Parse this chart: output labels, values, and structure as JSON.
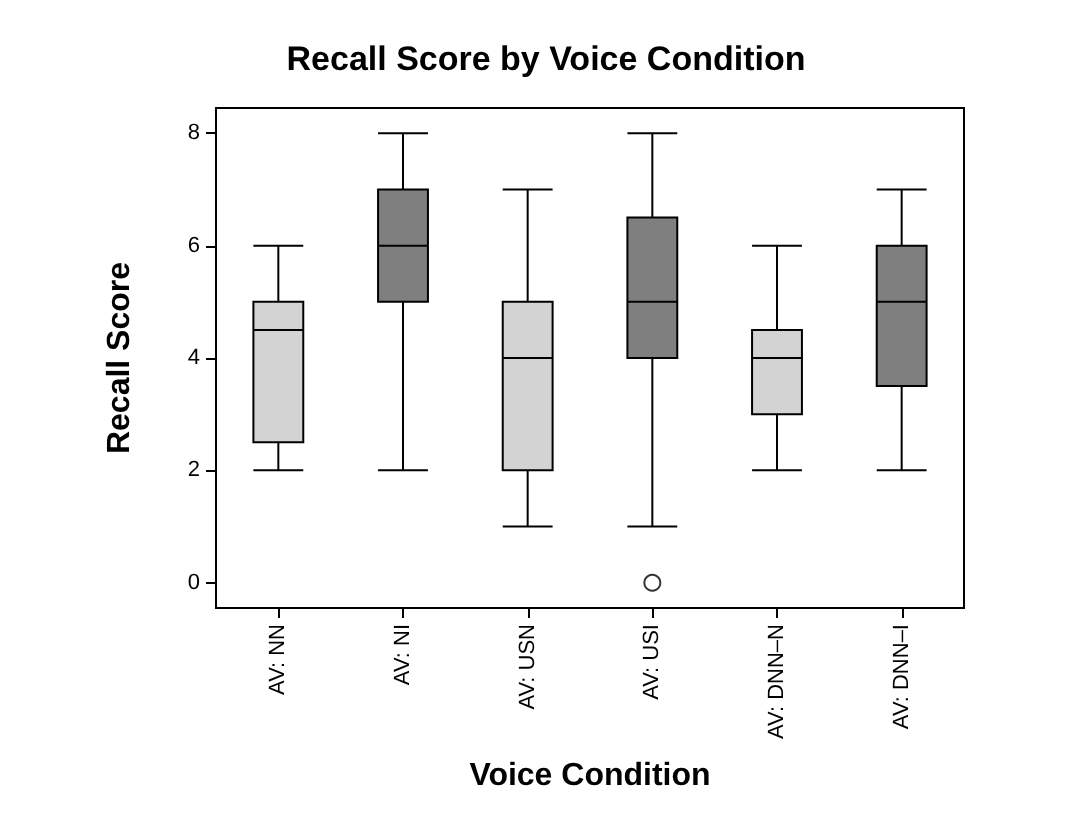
{
  "chart_data": {
    "type": "box",
    "title": "Recall Score by Voice Condition",
    "xlabel": "Voice Condition",
    "ylabel": "Recall Score",
    "categories": [
      "AV: NN",
      "AV: NI",
      "AV: USN",
      "AV: USI",
      "AV: DNN–N",
      "AV: DNN–I"
    ],
    "colors": [
      "#d3d3d3",
      "#7f7f7f",
      "#d3d3d3",
      "#7f7f7f",
      "#d3d3d3",
      "#7f7f7f"
    ],
    "boxes": [
      {
        "low": 2,
        "q1": 2.5,
        "median": 4.5,
        "q3": 5,
        "high": 6
      },
      {
        "low": 2,
        "q1": 5,
        "median": 6,
        "q3": 7,
        "high": 8
      },
      {
        "low": 1,
        "q1": 2,
        "median": 4,
        "q3": 5,
        "high": 7
      },
      {
        "low": 1,
        "q1": 4,
        "median": 5,
        "q3": 6.5,
        "high": 8,
        "outliers": [
          0
        ]
      },
      {
        "low": 2,
        "q1": 3,
        "median": 4,
        "q3": 4.5,
        "high": 6
      },
      {
        "low": 2,
        "q1": 3.5,
        "median": 5,
        "q3": 6,
        "high": 7
      }
    ],
    "ylim": [
      -0.45,
      8.45
    ],
    "yticks": [
      0,
      2,
      4,
      6,
      8
    ],
    "grid": false,
    "marker": "circle"
  }
}
